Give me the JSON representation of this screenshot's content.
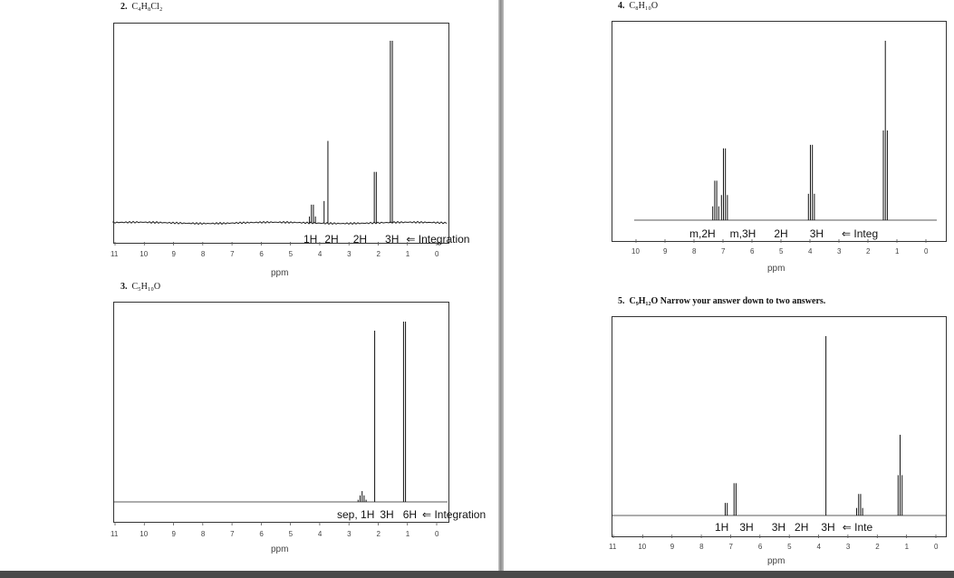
{
  "problems": [
    {
      "number": "2.",
      "formula": "C₄H₈Cl₂",
      "note": "",
      "integration": {
        "peaks": [
          "1H",
          "2H",
          "2H",
          "3H"
        ],
        "arrow": "⇐",
        "label": "Integration"
      },
      "axis_ticks": [
        "11",
        "10",
        "9",
        "8",
        "7",
        "6",
        "5",
        "4",
        "3",
        "2",
        "1",
        "0"
      ],
      "axis_label": "ppm",
      "spectrum": {
        "noisy": true,
        "peaks": [
          {
            "ppm": 4.25,
            "height": 0.1,
            "mult": 4
          },
          {
            "ppm": 3.72,
            "height": 0.45,
            "mult": 1
          },
          {
            "ppm": 3.85,
            "height": 0.12,
            "mult": 1
          },
          {
            "ppm": 2.1,
            "height": 0.28,
            "mult": 2
          },
          {
            "ppm": 1.55,
            "height": 1.0,
            "mult": 2
          }
        ]
      }
    },
    {
      "number": "3.",
      "formula": "C₅H₁₀O",
      "note": "",
      "integration": {
        "peaks": [
          "sep, 1H",
          "3H",
          "6H"
        ],
        "arrow": "⇐",
        "label": "Integration"
      },
      "axis_ticks": [
        "11",
        "10",
        "9",
        "8",
        "7",
        "6",
        "5",
        "4",
        "3",
        "2",
        "1",
        "0"
      ],
      "axis_label": "ppm",
      "spectrum": {
        "noisy": false,
        "peaks": [
          {
            "ppm": 2.55,
            "height": 0.06,
            "mult": 5
          },
          {
            "ppm": 2.12,
            "height": 0.95,
            "mult": 1
          },
          {
            "ppm": 1.1,
            "height": 1.0,
            "mult": 2
          }
        ]
      }
    },
    {
      "number": "4.",
      "formula": "C₈H₁₀O",
      "note": "",
      "integration": {
        "peaks": [
          "m,2H",
          "m,3H",
          "2H",
          "3H"
        ],
        "arrow": "⇐",
        "label": "Integ"
      },
      "axis_ticks": [
        "10",
        "9",
        "8",
        "7",
        "6",
        "5",
        "4",
        "3",
        "2",
        "1",
        "0"
      ],
      "axis_label": "ppm",
      "spectrum": {
        "noisy": false,
        "peaks": [
          {
            "ppm": 7.25,
            "height": 0.22,
            "mult": 4
          },
          {
            "ppm": 6.95,
            "height": 0.4,
            "mult": 4
          },
          {
            "ppm": 3.95,
            "height": 0.42,
            "mult": 4
          },
          {
            "ppm": 1.4,
            "height": 1.0,
            "mult": 3
          }
        ]
      }
    },
    {
      "number": "5.",
      "formula": "C₉H₁₂O",
      "note": "Narrow your answer down to two answers.",
      "integration": {
        "peaks": [
          "1H",
          "3H",
          "3H",
          "2H",
          "3H"
        ],
        "arrow": "⇐",
        "label": "Inte"
      },
      "axis_ticks": [
        "11",
        "10",
        "9",
        "8",
        "7",
        "6",
        "5",
        "4",
        "3",
        "2",
        "1",
        "0"
      ],
      "axis_label": "ppm",
      "spectrum": {
        "noisy": false,
        "peaks": [
          {
            "ppm": 7.15,
            "height": 0.07,
            "mult": 2
          },
          {
            "ppm": 6.85,
            "height": 0.18,
            "mult": 2
          },
          {
            "ppm": 3.75,
            "height": 1.0,
            "mult": 1
          },
          {
            "ppm": 2.6,
            "height": 0.12,
            "mult": 4
          },
          {
            "ppm": 1.22,
            "height": 0.45,
            "mult": 3
          }
        ]
      }
    }
  ]
}
